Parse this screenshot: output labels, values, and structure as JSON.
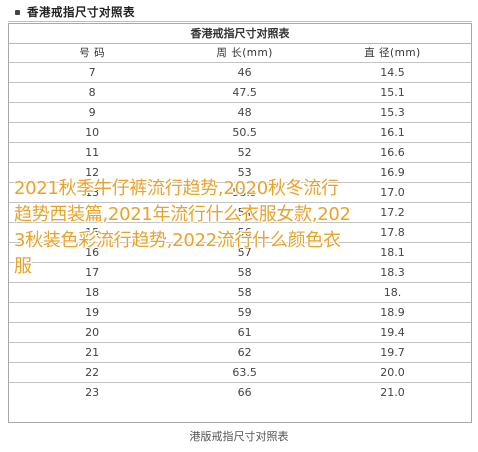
{
  "header": {
    "title": "香港戒指尺寸对照表",
    "bullet_icon": "square-bullet-icon"
  },
  "table": {
    "heading": "香港戒指尺寸对照表",
    "columns": [
      "号 码",
      "周 长(mm)",
      "直 径(mm)"
    ],
    "rows": [
      [
        "7",
        "46",
        "14.5"
      ],
      [
        "8",
        "47.5",
        "15.1"
      ],
      [
        "9",
        "48",
        "15.3"
      ],
      [
        "10",
        "50.5",
        "16.1"
      ],
      [
        "11",
        "52",
        "16.6"
      ],
      [
        "12",
        "53",
        "16.9"
      ],
      [
        "13",
        "53.5",
        "17.0"
      ],
      [
        "14",
        "54",
        "17.2"
      ],
      [
        "15",
        "56",
        "17.8"
      ],
      [
        "16",
        "57",
        "18.1"
      ],
      [
        "17",
        "58",
        "18.3"
      ],
      [
        "18",
        "58",
        "18."
      ],
      [
        "19",
        "59",
        "18.9"
      ],
      [
        "20",
        "61",
        "19.4"
      ],
      [
        "21",
        "62",
        "19.7"
      ],
      [
        "22",
        "63.5",
        "20.0"
      ],
      [
        "23",
        "66",
        "21.0"
      ]
    ]
  },
  "caption": "港版戒指尺寸对照表",
  "overlay_text": "2021秋季牛仔裤流行趋势,2020秋冬流行趋势西装篇,2021年流行什么衣服女款,2023秋装色彩流行趋势,2022流行什么颜色衣服",
  "colors": {
    "overlay": "#e8a32a",
    "border": "#a9a9a9",
    "text": "#444444"
  }
}
